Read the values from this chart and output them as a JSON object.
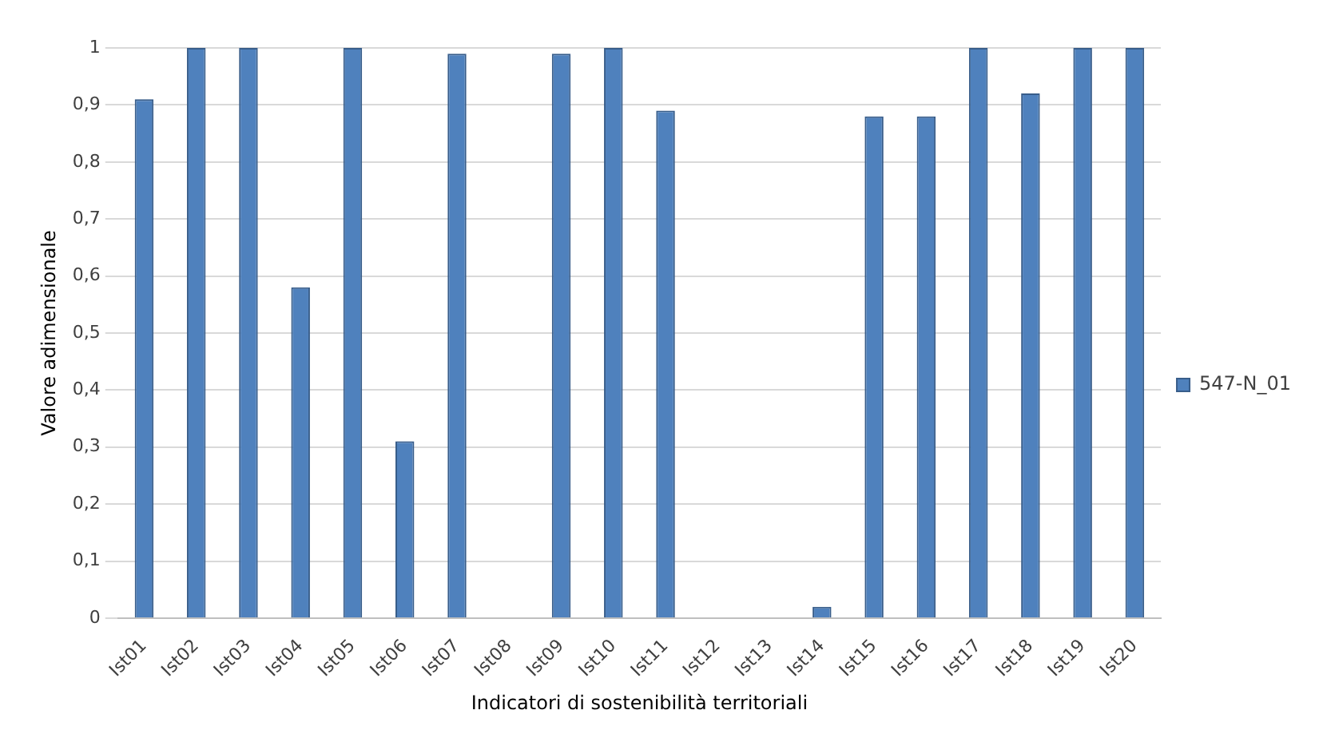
{
  "chart_data": {
    "type": "bar",
    "xlabel": "Indicatori di sostenibilità territoriali",
    "ylabel": "Valore adimensionale",
    "categories": [
      "Ist01",
      "Ist02",
      "Ist03",
      "Ist04",
      "Ist05",
      "Ist06",
      "Ist07",
      "Ist08",
      "Ist09",
      "Ist10",
      "Ist11",
      "Ist12",
      "Ist13",
      "Ist14",
      "Ist15",
      "Ist16",
      "Ist17",
      "Ist18",
      "Ist19",
      "Ist20"
    ],
    "series": [
      {
        "name": "547-N_01",
        "color": "#4f81bd",
        "values": [
          0.91,
          1,
          1,
          0.58,
          1,
          0.31,
          0.99,
          0,
          0.99,
          1,
          0.89,
          0,
          0,
          0.02,
          0.88,
          0.88,
          1,
          0.92,
          1,
          1
        ]
      }
    ],
    "ylim": [
      0,
      1
    ],
    "yticks": [
      {
        "value": 0,
        "label": "0"
      },
      {
        "value": 0.1,
        "label": "0,1"
      },
      {
        "value": 0.2,
        "label": "0,2"
      },
      {
        "value": 0.3,
        "label": "0,3"
      },
      {
        "value": 0.4,
        "label": "0,4"
      },
      {
        "value": 0.5,
        "label": "0,5"
      },
      {
        "value": 0.6,
        "label": "0,6"
      },
      {
        "value": 0.7,
        "label": "0,7"
      },
      {
        "value": 0.8,
        "label": "0,8"
      },
      {
        "value": 0.9,
        "label": "0,9"
      },
      {
        "value": 1,
        "label": "1"
      }
    ],
    "grid": "y",
    "legend": "right"
  }
}
